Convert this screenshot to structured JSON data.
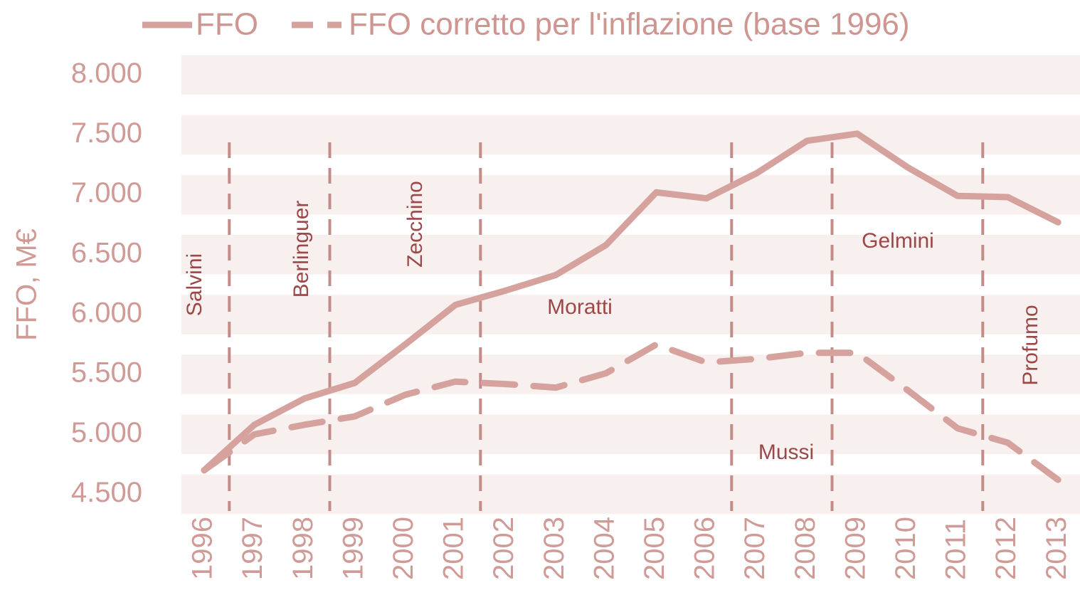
{
  "chart_data": {
    "type": "line",
    "ylabel": "FFO, M€",
    "categories": [
      "1996",
      "1997",
      "1998",
      "1999",
      "2000",
      "2001",
      "2002",
      "2003",
      "2004",
      "2005",
      "2006",
      "2007",
      "2008",
      "2009",
      "2010",
      "2011",
      "2012",
      "2013"
    ],
    "series": [
      {
        "name": "FFO",
        "color": "#d6a29e",
        "dash": false,
        "values": [
          4700,
          5080,
          5300,
          5430,
          5750,
          6080,
          6200,
          6330,
          6580,
          7020,
          6970,
          7180,
          7450,
          7510,
          7230,
          6990,
          6980,
          6770
        ]
      },
      {
        "name": "FFO corretto per l'inflazione (base 1996)",
        "color": "#d6a29e",
        "dash": true,
        "values": [
          4700,
          5000,
          5080,
          5150,
          5330,
          5440,
          5420,
          5390,
          5510,
          5750,
          5600,
          5630,
          5680,
          5680,
          5370,
          5050,
          4930,
          4620
        ]
      }
    ],
    "ylim": [
      4360,
      8180
    ],
    "yticks": [
      {
        "value": 4500,
        "label": "4.500"
      },
      {
        "value": 5000,
        "label": "5.000"
      },
      {
        "value": 5500,
        "label": "5.500"
      },
      {
        "value": 6000,
        "label": "6.000"
      },
      {
        "value": 6500,
        "label": "6.500"
      },
      {
        "value": 7000,
        "label": "7.000"
      },
      {
        "value": 7500,
        "label": "7.500"
      },
      {
        "value": 8000,
        "label": "8.000"
      }
    ],
    "ministers": [
      "Salvini",
      "Berlinguer",
      "Zecchino",
      "Moratti",
      "Mussi",
      "Gelmini",
      "Profumo"
    ],
    "dividers": [
      1996.5,
      1998.5,
      2001.5,
      2006.5,
      2008.5,
      2011.5
    ],
    "divider_color": "#c48c88",
    "band_color": "#f8f0ef"
  }
}
